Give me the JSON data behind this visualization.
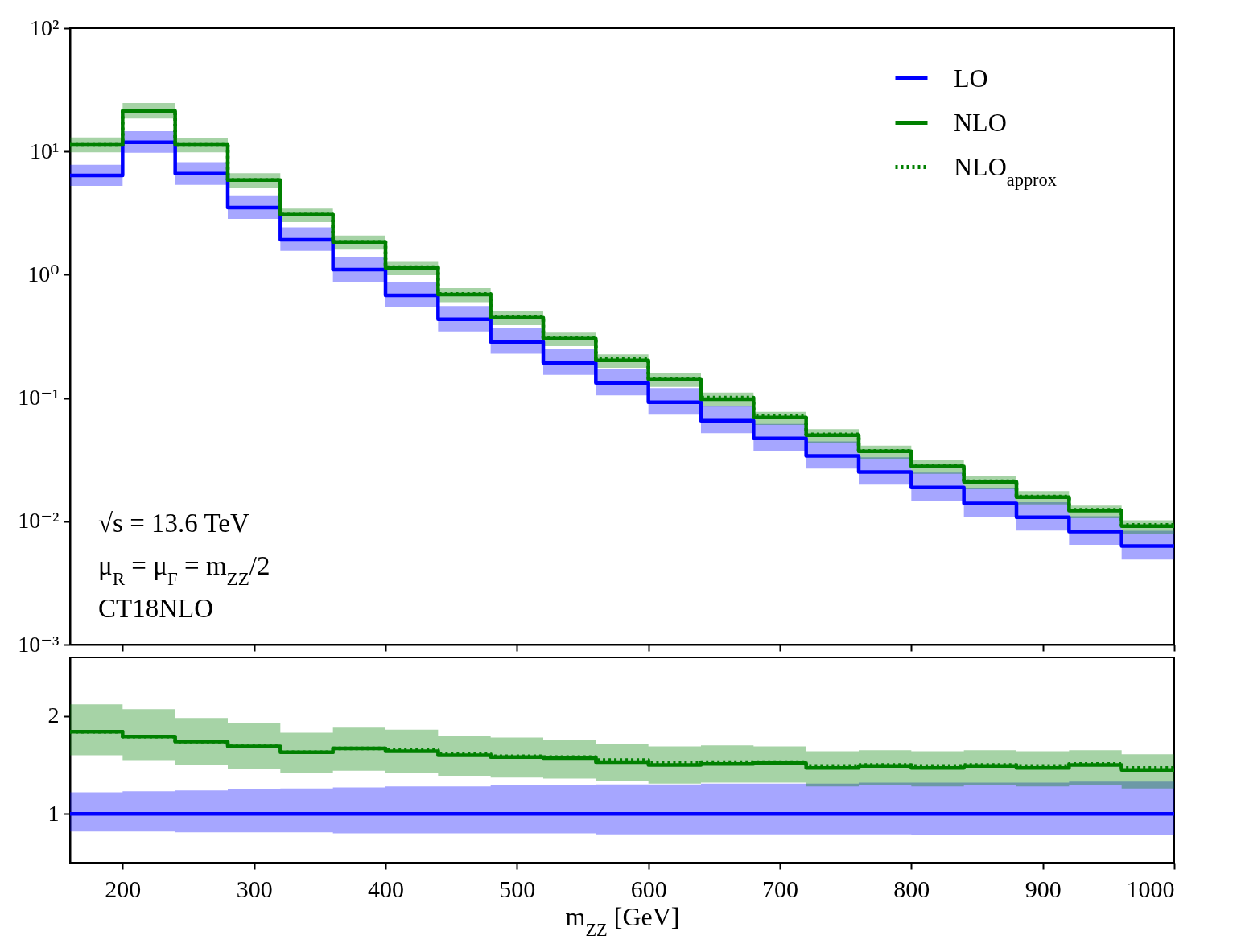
{
  "chart_data": [
    {
      "type": "step",
      "x": [
        160,
        200,
        240,
        280,
        320,
        360,
        400,
        440,
        480,
        520,
        560,
        600,
        640,
        680,
        720,
        760,
        800,
        840,
        880,
        920,
        960,
        1000
      ],
      "xlim": [
        160,
        1000
      ],
      "xticks": [
        200,
        300,
        400,
        500,
        600,
        700,
        800,
        900,
        1000
      ],
      "log": true,
      "ylim": [
        0.001,
        100
      ],
      "yticks": [
        {
          "value": 0.001,
          "label": "10⁻³"
        },
        {
          "value": 0.01,
          "label": "10⁻²"
        },
        {
          "value": 0.1,
          "label": "10⁻¹"
        },
        {
          "value": 1,
          "label": "10⁰"
        },
        {
          "value": 10,
          "label": "10¹"
        },
        {
          "value": 100,
          "label": "10²"
        }
      ],
      "tick_labels": "y",
      "legend": "top right",
      "line_style": "solid",
      "annotations": [
        "√s = 13.6 TeV",
        "μ$_{R}$ = μ$_{F}$ = m$_{ZZ}$/2",
        "CT18NLO"
      ],
      "series": [
        {
          "name": "LO",
          "color": "#0000ff",
          "values": [
            6.4,
            11.9,
            6.6,
            3.5,
            1.92,
            1.1,
            0.68,
            0.435,
            0.286,
            0.193,
            0.133,
            0.0927,
            0.0656,
            0.0471,
            0.0339,
            0.0251,
            0.0188,
            0.014,
            0.0108,
            0.00826,
            0.0063,
            0.0063
          ],
          "lower": [
            5.25,
            9.76,
            5.35,
            2.84,
            1.56,
            0.88,
            0.544,
            0.348,
            0.229,
            0.154,
            0.105,
            0.0732,
            0.0518,
            0.0372,
            0.0268,
            0.0198,
            0.0147,
            0.0109,
            0.00842,
            0.00644,
            0.00491,
            0.00491
          ],
          "upper": [
            7.8,
            14.6,
            8.2,
            4.4,
            2.42,
            1.4,
            0.87,
            0.557,
            0.369,
            0.249,
            0.173,
            0.1205,
            0.0859,
            0.0617,
            0.0444,
            0.0331,
            0.0248,
            0.0185,
            0.0143,
            0.011,
            0.00838,
            0.00838
          ]
        },
        {
          "name": "NLO",
          "color": "#008000",
          "values": [
            11.3,
            21.3,
            11.3,
            5.85,
            3.07,
            1.84,
            1.14,
            0.69,
            0.449,
            0.303,
            0.202,
            0.141,
            0.098,
            0.0696,
            0.05,
            0.037,
            0.0279,
            0.0209,
            0.0157,
            0.0122,
            0.00916,
            0.00916
          ],
          "lower": [
            9.83,
            18.5,
            9.83,
            5.09,
            2.67,
            1.6,
            0.99,
            0.6,
            0.391,
            0.264,
            0.176,
            0.123,
            0.0853,
            0.0606,
            0.0435,
            0.0322,
            0.0243,
            0.0182,
            0.0137,
            0.0106,
            0.00797,
            0.00797
          ],
          "upper": [
            13.0,
            24.7,
            12.9,
            6.67,
            3.44,
            2.08,
            1.29,
            0.78,
            0.507,
            0.339,
            0.226,
            0.159,
            0.111,
            0.0773,
            0.056,
            0.0411,
            0.0312,
            0.0232,
            0.0176,
            0.0134,
            0.0102,
            0.0102
          ]
        },
        {
          "name": "NLO$_{approx}$",
          "color": "#008000",
          "line_style": "dotted",
          "values": [
            11.3,
            21.3,
            11.3,
            5.85,
            3.07,
            1.84,
            1.15,
            0.7,
            0.455,
            0.309,
            0.208,
            0.144,
            0.101,
            0.0712,
            0.0507,
            0.0373,
            0.0282,
            0.0211,
            0.0159,
            0.0124,
            0.00935,
            0.00935
          ]
        }
      ]
    },
    {
      "type": "step",
      "x": [
        160,
        200,
        240,
        280,
        320,
        360,
        400,
        440,
        480,
        520,
        560,
        600,
        640,
        680,
        720,
        760,
        800,
        840,
        880,
        920,
        960,
        1000
      ],
      "xlim": [
        160,
        1000
      ],
      "xticks": [
        200,
        300,
        400,
        500,
        600,
        700,
        800,
        900,
        1000
      ],
      "ylim": [
        0.5,
        2.6
      ],
      "yticks": [
        1,
        2
      ],
      "xlabel": "m$_{ZZ}$ [GeV]",
      "line_style": "solid",
      "series": [
        {
          "color": "#0000ff",
          "values": [
            1,
            1,
            1,
            1,
            1,
            1,
            1,
            1,
            1,
            1,
            1,
            1,
            1,
            1,
            1,
            1,
            1,
            1,
            1,
            1,
            1,
            1
          ],
          "lower": [
            0.82,
            0.82,
            0.81,
            0.81,
            0.81,
            0.8,
            0.8,
            0.8,
            0.8,
            0.8,
            0.79,
            0.79,
            0.79,
            0.79,
            0.79,
            0.79,
            0.78,
            0.78,
            0.78,
            0.78,
            0.78,
            0.78
          ],
          "upper": [
            1.22,
            1.23,
            1.24,
            1.25,
            1.26,
            1.27,
            1.28,
            1.28,
            1.29,
            1.29,
            1.3,
            1.3,
            1.31,
            1.31,
            1.31,
            1.32,
            1.32,
            1.32,
            1.32,
            1.33,
            1.33,
            1.33
          ]
        },
        {
          "color": "#008000",
          "values": [
            1.84,
            1.79,
            1.74,
            1.69,
            1.63,
            1.67,
            1.64,
            1.6,
            1.58,
            1.57,
            1.53,
            1.5,
            1.51,
            1.52,
            1.47,
            1.49,
            1.47,
            1.49,
            1.47,
            1.5,
            1.45,
            1.45
          ],
          "lower": [
            1.6,
            1.55,
            1.5,
            1.46,
            1.42,
            1.44,
            1.42,
            1.39,
            1.37,
            1.36,
            1.34,
            1.31,
            1.32,
            1.32,
            1.28,
            1.29,
            1.28,
            1.29,
            1.28,
            1.29,
            1.26,
            1.26
          ],
          "upper": [
            2.12,
            2.07,
            1.98,
            1.93,
            1.83,
            1.89,
            1.86,
            1.8,
            1.78,
            1.76,
            1.71,
            1.69,
            1.7,
            1.69,
            1.64,
            1.65,
            1.64,
            1.65,
            1.64,
            1.65,
            1.61,
            1.61
          ]
        },
        {
          "color": "#008000",
          "line_style": "dotted",
          "values": [
            1.84,
            1.79,
            1.74,
            1.69,
            1.63,
            1.67,
            1.65,
            1.61,
            1.59,
            1.58,
            1.55,
            1.52,
            1.53,
            1.53,
            1.49,
            1.5,
            1.49,
            1.5,
            1.49,
            1.51,
            1.47,
            1.47
          ]
        }
      ]
    }
  ]
}
